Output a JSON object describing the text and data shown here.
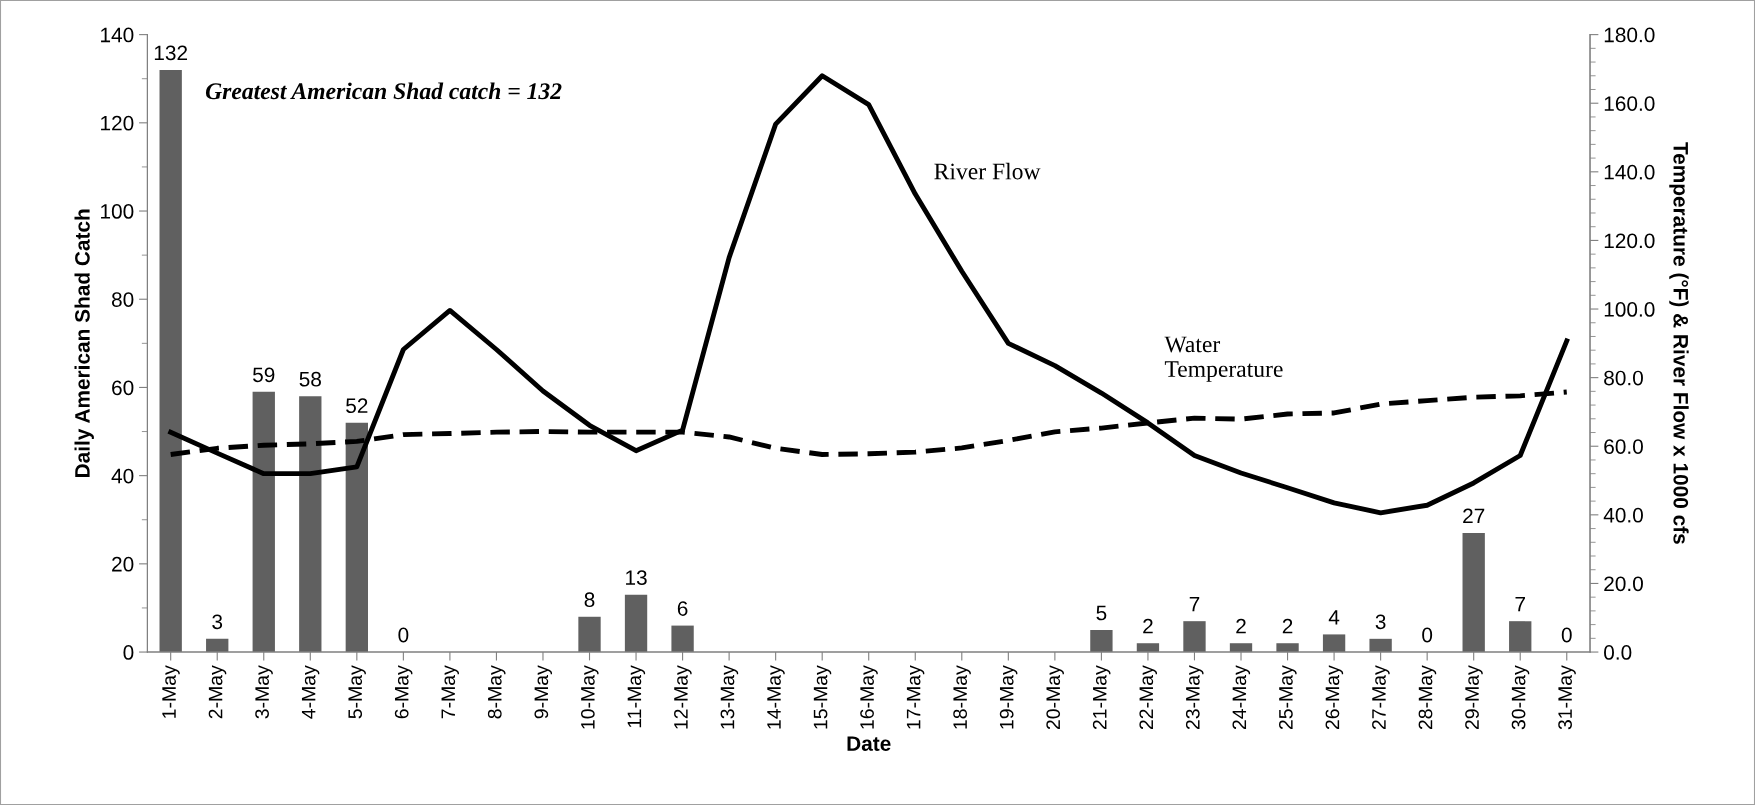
{
  "chart_data": {
    "type": "bar",
    "xlabel": "Date",
    "ylabel": "Daily American Shad Catch",
    "y2label": "Temperature (°F) & River Flow x 1000 cfs",
    "categories": [
      "1-May",
      "2-May",
      "3-May",
      "4-May",
      "5-May",
      "6-May",
      "7-May",
      "8-May",
      "9-May",
      "10-May",
      "11-May",
      "12-May",
      "13-May",
      "14-May",
      "15-May",
      "16-May",
      "17-May",
      "18-May",
      "19-May",
      "20-May",
      "21-May",
      "22-May",
      "23-May",
      "24-May",
      "25-May",
      "26-May",
      "27-May",
      "28-May",
      "29-May",
      "30-May",
      "31-May"
    ],
    "series": [
      {
        "color": "#606060",
        "values": [
          132,
          3,
          59,
          58,
          52,
          0,
          null,
          null,
          null,
          8,
          13,
          6,
          null,
          null,
          null,
          null,
          null,
          null,
          null,
          null,
          5,
          2,
          7,
          2,
          2,
          4,
          3,
          0,
          27,
          7,
          0
        ],
        "value_labels": [
          "132",
          "3",
          "59",
          "58",
          "52",
          "0",
          null,
          null,
          null,
          "8",
          "13",
          "6",
          null,
          null,
          null,
          null,
          null,
          null,
          null,
          null,
          "5",
          "2",
          "7",
          "2",
          "2",
          "4",
          "3",
          "0",
          "27",
          "7",
          "0"
        ]
      },
      {
        "type": "line",
        "axis": "y2",
        "color": "#000000",
        "line_style": "solid",
        "values": [
          64.1,
          58.0,
          52.0,
          52.0,
          54.0,
          88.2,
          99.6,
          88.2,
          76.1,
          66.1,
          58.7,
          64.7,
          115,
          153.9,
          168,
          159.6,
          133.5,
          111,
          90,
          83.5,
          75.5,
          66.8,
          57.3,
          52.2,
          47.9,
          43.5,
          40.6,
          42.8,
          49.3,
          57.3,
          90.7
        ]
      },
      {
        "type": "line",
        "axis": "y2",
        "color": "#000000",
        "line_style": "dashed",
        "values": [
          57.6,
          59.4,
          60.3,
          60.7,
          61.4,
          63.4,
          63.7,
          64.1,
          64.3,
          64.1,
          64.1,
          64.1,
          62.7,
          59.4,
          57.6,
          57.8,
          58.3,
          59.5,
          61.7,
          64.2,
          65.3,
          66.8,
          68.2,
          67.9,
          69.4,
          69.7,
          72.3,
          73.3,
          74.3,
          74.7,
          75.8
        ]
      }
    ],
    "ylim": [
      0,
      140
    ],
    "yticks": [
      0,
      20,
      40,
      60,
      80,
      100,
      120,
      140
    ],
    "y2lim": [
      0,
      180
    ],
    "y2ticks": [
      {
        "value": 0,
        "label": "0.0"
      },
      {
        "value": 20,
        "label": "20.0"
      },
      {
        "value": 40,
        "label": "40.0"
      },
      {
        "value": 60,
        "label": "60.0"
      },
      {
        "value": 80,
        "label": "80.0"
      },
      {
        "value": 100,
        "label": "100.0"
      },
      {
        "value": 120,
        "label": "120.0"
      },
      {
        "value": 140,
        "label": "140.0"
      },
      {
        "value": 160,
        "label": "160.0"
      },
      {
        "value": 180,
        "label": "180.0"
      }
    ],
    "grid": false,
    "legend": false,
    "annotations": [
      "Greatest American Shad catch = 132",
      "River Flow",
      "Water\nTemperature"
    ]
  }
}
